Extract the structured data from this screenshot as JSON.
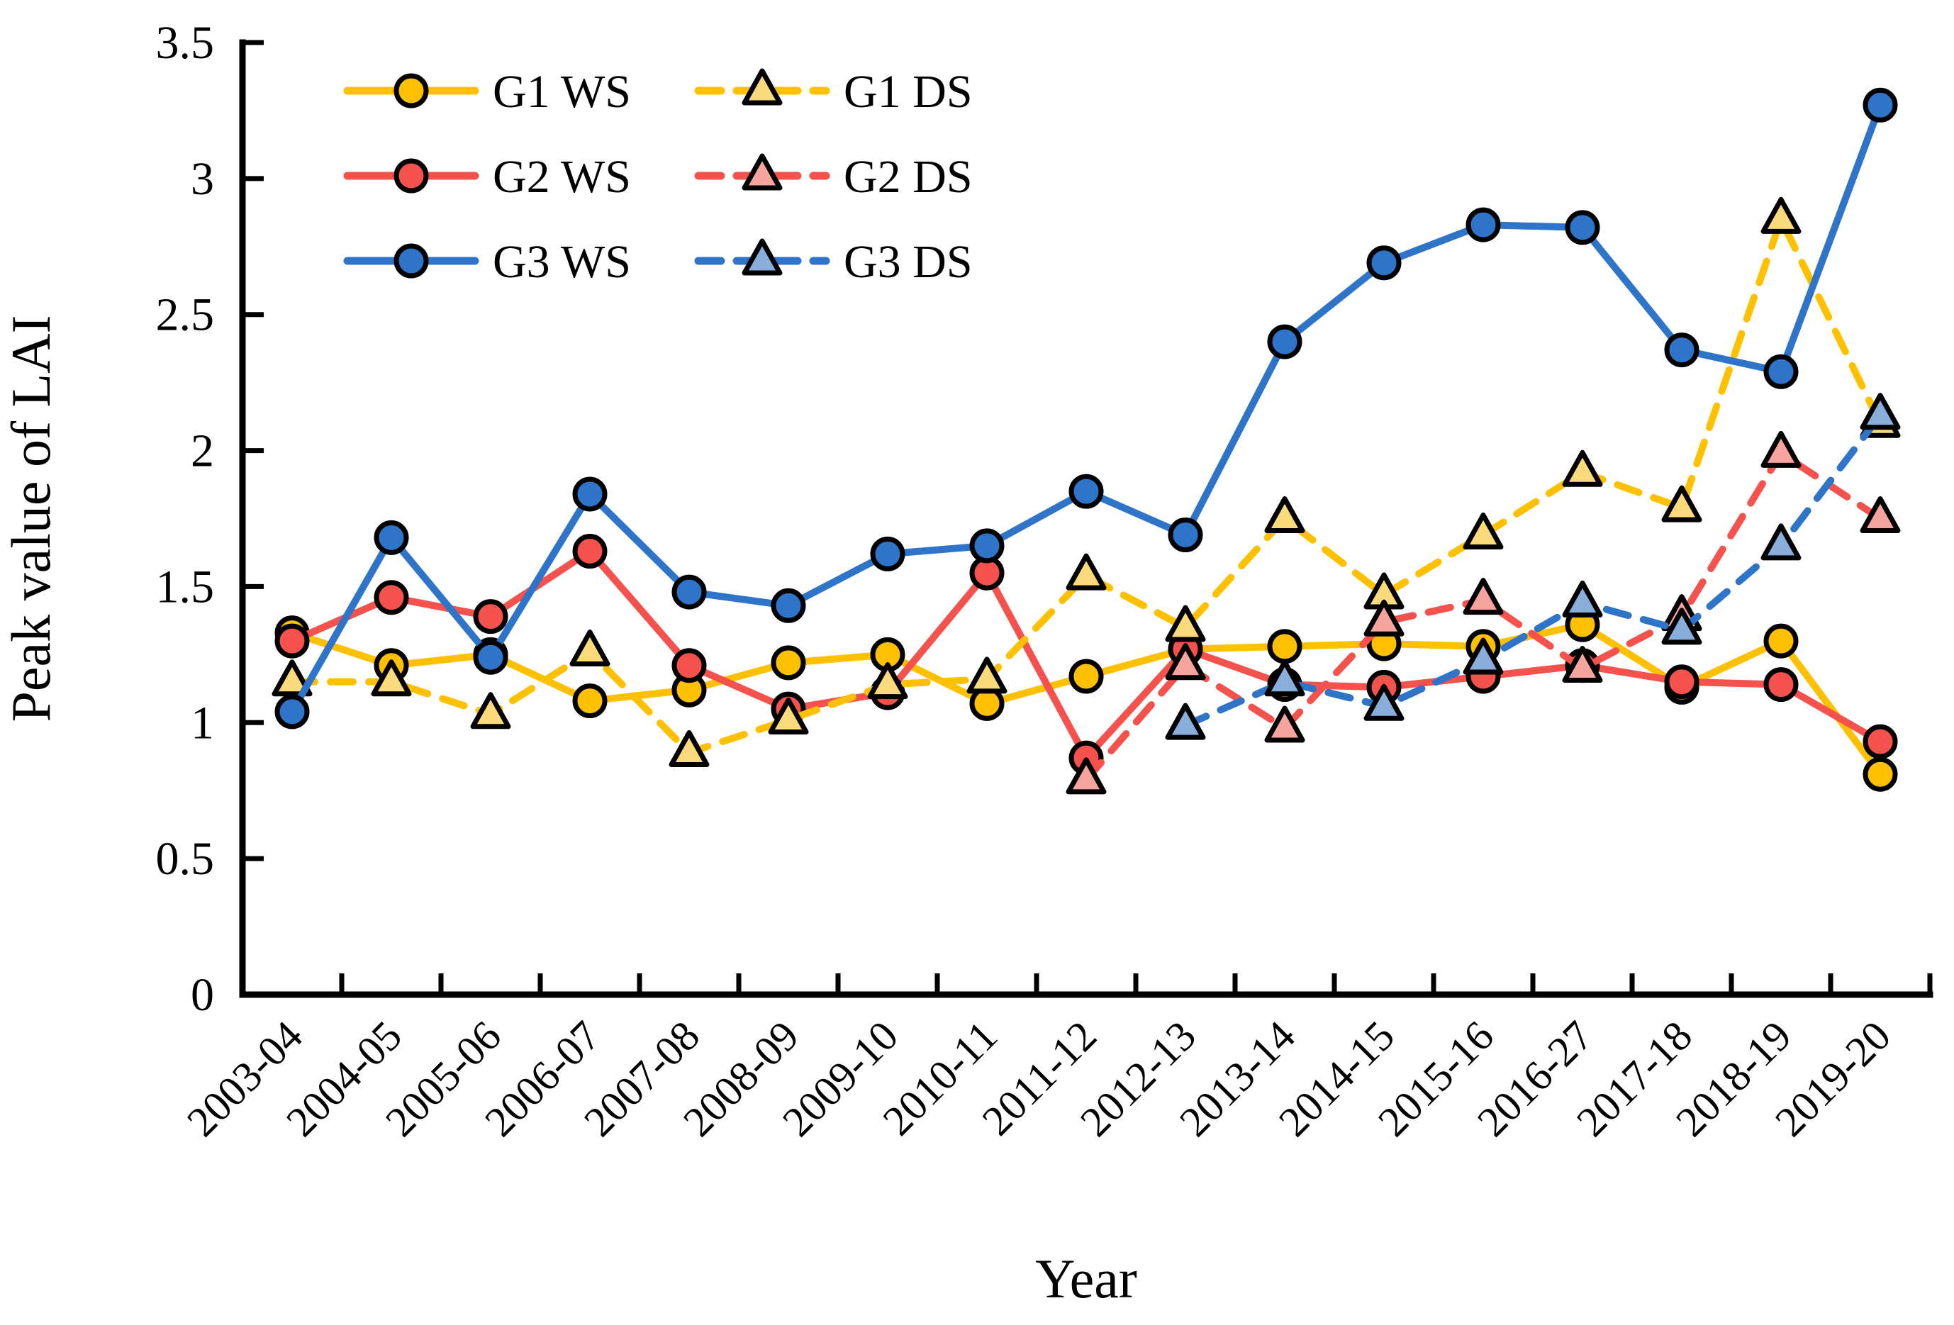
{
  "figure": {
    "background": "#ffffff",
    "axis_color": "#000000"
  },
  "chart_data": {
    "type": "line",
    "title": "",
    "xlabel": "Year",
    "ylabel": "Peak value of LAI",
    "ylim": [
      0,
      3.5
    ],
    "ytick_step": 0.5,
    "yticks": [
      "0",
      "0.5",
      "1",
      "1.5",
      "2",
      "2.5",
      "3",
      "3.5"
    ],
    "grid": false,
    "legend_position": "top-left-inside",
    "categories": [
      "2003-04",
      "2004-05",
      "2005-06",
      "2006-07",
      "2007-08",
      "2008-09",
      "2009-10",
      "2010-11",
      "2011-12",
      "2012-13",
      "2013-14",
      "2014-15",
      "2015-16",
      "2016-27",
      "2017-18",
      "2018-19",
      "2019-20"
    ],
    "series": [
      {
        "name": "G1 WS",
        "color": "#FFC000",
        "marker_fill": "#FFC000",
        "line_style": "solid",
        "marker": "circle",
        "values": [
          1.33,
          1.21,
          1.25,
          1.08,
          1.12,
          1.22,
          1.25,
          1.07,
          1.17,
          1.27,
          1.28,
          1.29,
          1.28,
          1.36,
          1.13,
          1.3,
          0.81
        ]
      },
      {
        "name": "G2 WS",
        "color": "#F5524E",
        "marker_fill": "#F5524E",
        "line_style": "solid",
        "marker": "circle",
        "values": [
          1.3,
          1.46,
          1.39,
          1.63,
          1.21,
          1.05,
          1.11,
          1.55,
          0.87,
          1.27,
          1.14,
          1.13,
          1.17,
          1.21,
          1.15,
          1.14,
          0.93
        ]
      },
      {
        "name": "G3 WS",
        "color": "#2E74C9",
        "marker_fill": "#2E74C9",
        "line_style": "solid",
        "marker": "circle",
        "values": [
          1.04,
          1.68,
          1.24,
          1.84,
          1.48,
          1.43,
          1.62,
          1.65,
          1.85,
          1.69,
          2.4,
          2.69,
          2.83,
          2.82,
          2.37,
          2.29,
          3.27
        ]
      },
      {
        "name": "G1 DS",
        "color": "#FFC000",
        "marker_fill": "#FADA7A",
        "line_style": "dashed",
        "marker": "triangle",
        "values": [
          1.15,
          1.15,
          1.03,
          1.26,
          0.89,
          1.01,
          1.14,
          1.16,
          1.54,
          1.35,
          1.75,
          1.47,
          1.69,
          1.92,
          1.79,
          2.85,
          2.1
        ]
      },
      {
        "name": "G2 DS",
        "color": "#F5524E",
        "marker_fill": "#F7A39E",
        "line_style": "dashed",
        "marker": "triangle",
        "values": [
          null,
          null,
          null,
          null,
          null,
          null,
          null,
          null,
          0.79,
          1.21,
          0.98,
          1.37,
          1.45,
          1.2,
          1.39,
          1.99,
          1.75
        ]
      },
      {
        "name": "G3 DS",
        "color": "#2E74C9",
        "marker_fill": "#8AAEDC",
        "line_style": "dashed",
        "marker": "triangle",
        "values": [
          null,
          null,
          null,
          null,
          null,
          null,
          null,
          null,
          null,
          0.99,
          1.15,
          1.06,
          1.23,
          1.44,
          1.34,
          1.65,
          2.13
        ]
      }
    ],
    "legend": {
      "columns": [
        {
          "items": [
            "G1 WS",
            "G2 WS",
            "G3 WS"
          ]
        },
        {
          "items": [
            "G1 DS",
            "G2 DS",
            "G3 DS"
          ]
        }
      ]
    }
  }
}
